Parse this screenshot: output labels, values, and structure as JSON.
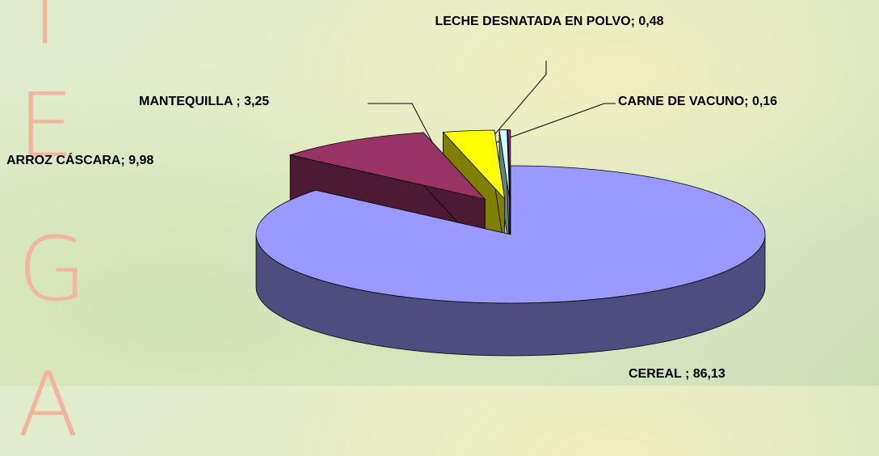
{
  "chart_data": {
    "type": "pie3d",
    "categories": [
      "CEREAL ;",
      "ARROZ CÁSCARA;",
      "MANTEQUILLA ;",
      "LECHE DESNATADA EN POLVO;",
      "CARNE DE VACUNO;"
    ],
    "values": [
      86.13,
      9.98,
      3.25,
      0.48,
      0.16
    ],
    "value_labels": [
      "86,13",
      "9,98",
      "3,25",
      "0,48",
      "0,16"
    ],
    "colors": [
      "#9999ff",
      "#993366",
      "#ffff00",
      "#ccffff",
      "#993399"
    ]
  },
  "side_letters": [
    "T",
    "E",
    "G",
    "A"
  ]
}
